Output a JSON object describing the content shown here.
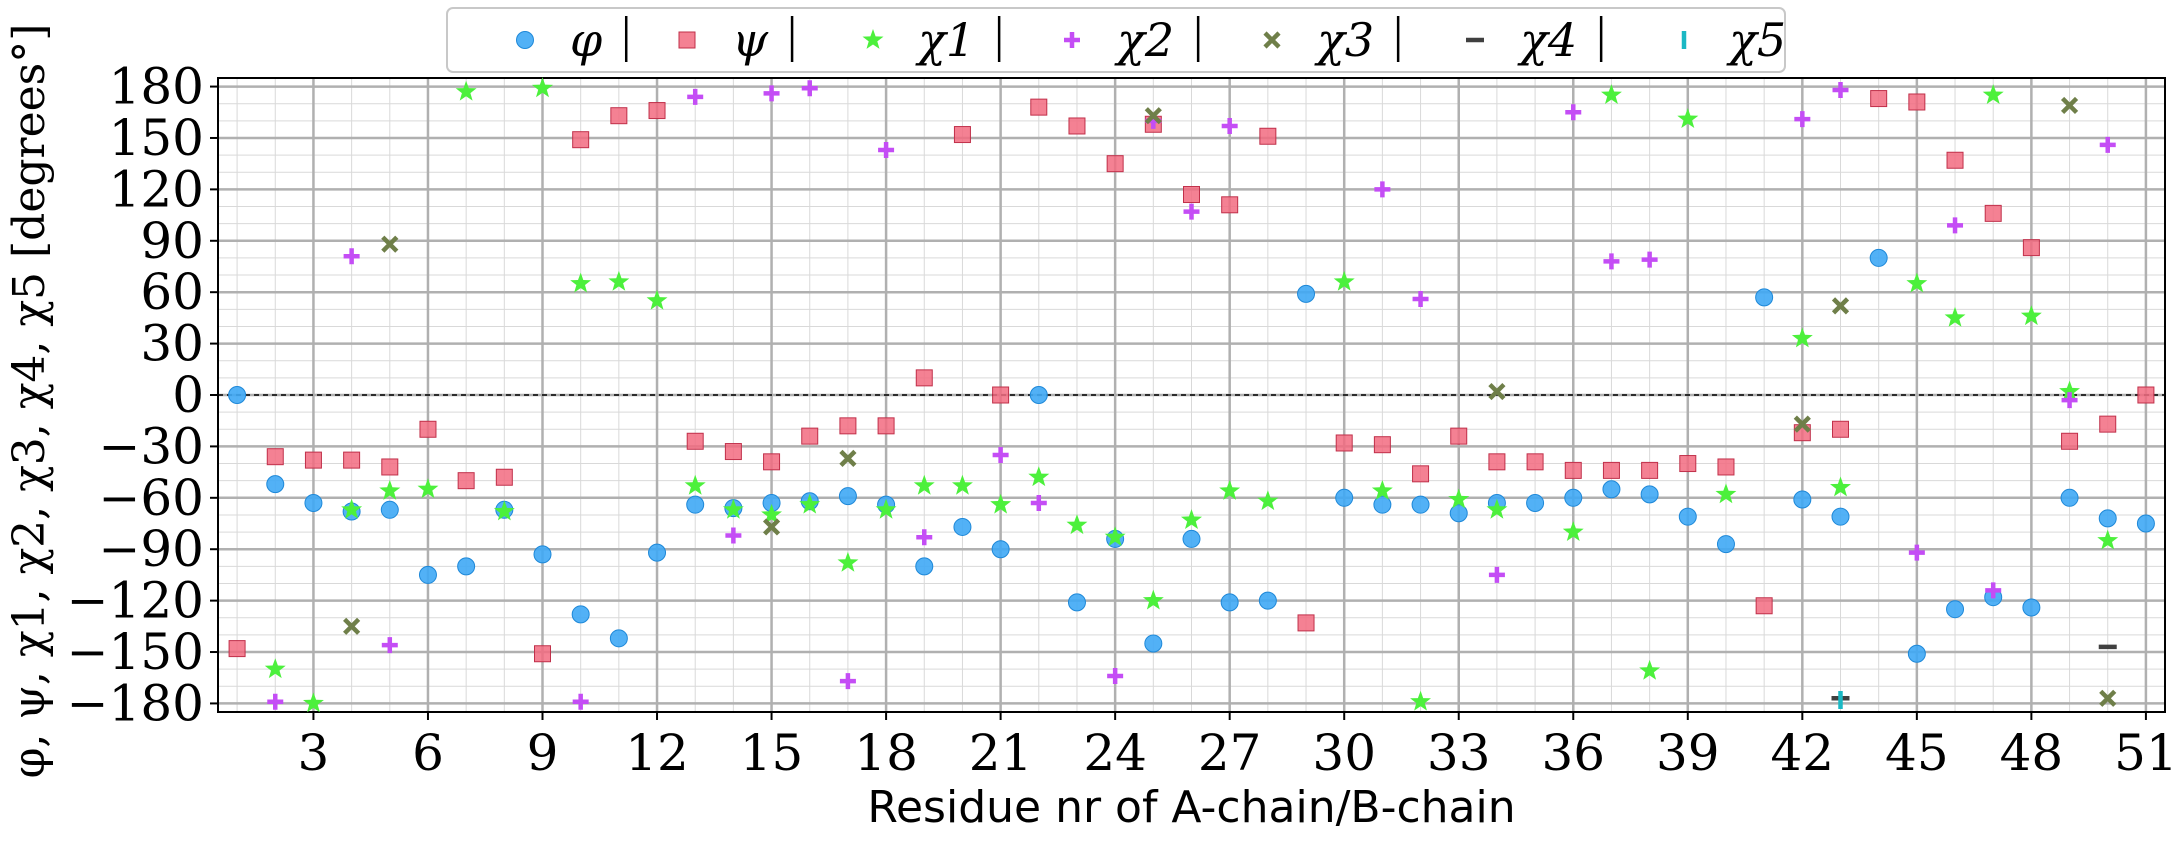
{
  "chart_data": {
    "type": "scatter",
    "xlabel": "Residue nr of A-chain/B-chain",
    "ylabel": "φ, ψ, χ1, χ2, χ3, χ4, χ5 [degrees°]",
    "xlim": [
      0.5,
      51.5
    ],
    "ylim": [
      -185,
      185
    ],
    "x_ticks": [
      3,
      6,
      9,
      12,
      15,
      18,
      21,
      24,
      27,
      30,
      33,
      36,
      39,
      42,
      45,
      48,
      51
    ],
    "y_ticks": [
      180,
      150,
      120,
      90,
      60,
      30,
      0,
      -30,
      -60,
      -90,
      -120,
      -150,
      -180
    ],
    "y_tick_labels": [
      "180",
      "150",
      "120",
      "90",
      "60",
      "30",
      "0",
      "−30",
      "−60",
      "−90",
      "−120",
      "−150",
      "−180"
    ],
    "minor_x_step": 1,
    "minor_y_step": 10,
    "grid": true,
    "zero_line": true,
    "legend_position": "top-center",
    "series": [
      {
        "name": "φ",
        "marker": "circle",
        "color": "#3fa9f5",
        "points": [
          [
            1,
            0
          ],
          [
            2,
            -52
          ],
          [
            3,
            -63
          ],
          [
            4,
            -68
          ],
          [
            5,
            -67
          ],
          [
            6,
            -105
          ],
          [
            7,
            -100
          ],
          [
            8,
            -67
          ],
          [
            9,
            -93
          ],
          [
            10,
            -128
          ],
          [
            11,
            -142
          ],
          [
            12,
            -92
          ],
          [
            13,
            -64
          ],
          [
            14,
            -66
          ],
          [
            15,
            -63
          ],
          [
            16,
            -62
          ],
          [
            17,
            -59
          ],
          [
            18,
            -64
          ],
          [
            19,
            -100
          ],
          [
            20,
            -77
          ],
          [
            21,
            -90
          ],
          [
            22,
            0
          ],
          [
            23,
            -121
          ],
          [
            24,
            -84
          ],
          [
            25,
            -145
          ],
          [
            26,
            -84
          ],
          [
            27,
            -121
          ],
          [
            28,
            -120
          ],
          [
            29,
            59
          ],
          [
            30,
            -60
          ],
          [
            31,
            -64
          ],
          [
            32,
            -64
          ],
          [
            33,
            -69
          ],
          [
            34,
            -63
          ],
          [
            35,
            -63
          ],
          [
            36,
            -60
          ],
          [
            37,
            -55
          ],
          [
            38,
            -58
          ],
          [
            39,
            -71
          ],
          [
            40,
            -87
          ],
          [
            41,
            57
          ],
          [
            42,
            -61
          ],
          [
            43,
            -71
          ],
          [
            44,
            80
          ],
          [
            45,
            -151
          ],
          [
            46,
            -125
          ],
          [
            47,
            -118
          ],
          [
            48,
            -124
          ],
          [
            49,
            -60
          ],
          [
            50,
            -72
          ],
          [
            51,
            -75
          ]
        ]
      },
      {
        "name": "ψ",
        "marker": "square",
        "color": "#f26b80",
        "points": [
          [
            1,
            -148
          ],
          [
            2,
            -36
          ],
          [
            3,
            -38
          ],
          [
            4,
            -38
          ],
          [
            5,
            -42
          ],
          [
            6,
            -20
          ],
          [
            7,
            -50
          ],
          [
            8,
            -48
          ],
          [
            9,
            -151
          ],
          [
            10,
            149
          ],
          [
            11,
            163
          ],
          [
            12,
            166
          ],
          [
            13,
            -27
          ],
          [
            14,
            -33
          ],
          [
            15,
            -39
          ],
          [
            16,
            -24
          ],
          [
            17,
            -18
          ],
          [
            18,
            -18
          ],
          [
            19,
            10
          ],
          [
            20,
            152
          ],
          [
            21,
            0
          ],
          [
            22,
            168
          ],
          [
            23,
            157
          ],
          [
            24,
            135
          ],
          [
            25,
            158
          ],
          [
            26,
            117
          ],
          [
            27,
            111
          ],
          [
            28,
            151
          ],
          [
            29,
            -133
          ],
          [
            30,
            -28
          ],
          [
            31,
            -29
          ],
          [
            32,
            -46
          ],
          [
            33,
            -24
          ],
          [
            34,
            -39
          ],
          [
            35,
            -39
          ],
          [
            36,
            -44
          ],
          [
            37,
            -44
          ],
          [
            38,
            -44
          ],
          [
            39,
            -40
          ],
          [
            40,
            -42
          ],
          [
            41,
            -123
          ],
          [
            42,
            -22
          ],
          [
            43,
            -20
          ],
          [
            44,
            173
          ],
          [
            45,
            171
          ],
          [
            46,
            137
          ],
          [
            47,
            106
          ],
          [
            48,
            86
          ],
          [
            49,
            -27
          ],
          [
            50,
            -17
          ],
          [
            51,
            0
          ]
        ]
      },
      {
        "name": "χ1",
        "marker": "star",
        "color": "#4cf03c",
        "points": [
          [
            2,
            -160
          ],
          [
            3,
            -180
          ],
          [
            4,
            -67
          ],
          [
            5,
            -56
          ],
          [
            6,
            -55
          ],
          [
            7,
            177
          ],
          [
            8,
            -68
          ],
          [
            9,
            179
          ],
          [
            10,
            65
          ],
          [
            11,
            66
          ],
          [
            12,
            55
          ],
          [
            13,
            -53
          ],
          [
            14,
            -67
          ],
          [
            15,
            -70
          ],
          [
            16,
            -64
          ],
          [
            17,
            -98
          ],
          [
            18,
            -67
          ],
          [
            19,
            -53
          ],
          [
            20,
            -53
          ],
          [
            21,
            -64
          ],
          [
            22,
            -48
          ],
          [
            23,
            -76
          ],
          [
            24,
            -83
          ],
          [
            25,
            -120
          ],
          [
            26,
            -73
          ],
          [
            27,
            -56
          ],
          [
            28,
            -62
          ],
          [
            30,
            66
          ],
          [
            31,
            -56
          ],
          [
            32,
            -179
          ],
          [
            33,
            -61
          ],
          [
            34,
            -67
          ],
          [
            36,
            -80
          ],
          [
            37,
            175
          ],
          [
            38,
            -161
          ],
          [
            39,
            161
          ],
          [
            40,
            -58
          ],
          [
            42,
            33
          ],
          [
            43,
            -54
          ],
          [
            45,
            65
          ],
          [
            46,
            45
          ],
          [
            47,
            175
          ],
          [
            48,
            46
          ],
          [
            49,
            2
          ],
          [
            50,
            -85
          ]
        ]
      },
      {
        "name": "χ2",
        "marker": "plus",
        "color": "#c44df5",
        "points": [
          [
            2,
            -179
          ],
          [
            4,
            81
          ],
          [
            5,
            -146
          ],
          [
            10,
            -179
          ],
          [
            13,
            174
          ],
          [
            14,
            -82
          ],
          [
            15,
            176
          ],
          [
            16,
            179
          ],
          [
            17,
            -167
          ],
          [
            18,
            143
          ],
          [
            19,
            -83
          ],
          [
            21,
            -35
          ],
          [
            22,
            -63
          ],
          [
            24,
            -164
          ],
          [
            25,
            160
          ],
          [
            26,
            107
          ],
          [
            27,
            157
          ],
          [
            31,
            120
          ],
          [
            32,
            56
          ],
          [
            34,
            -105
          ],
          [
            36,
            165
          ],
          [
            37,
            78
          ],
          [
            38,
            79
          ],
          [
            42,
            161
          ],
          [
            43,
            178
          ],
          [
            45,
            -92
          ],
          [
            46,
            99
          ],
          [
            47,
            -114
          ],
          [
            49,
            -3
          ],
          [
            50,
            146
          ]
        ]
      },
      {
        "name": "χ3",
        "marker": "x",
        "color": "#6f7f49",
        "points": [
          [
            4,
            -135
          ],
          [
            5,
            88
          ],
          [
            15,
            -77
          ],
          [
            17,
            -37
          ],
          [
            25,
            163
          ],
          [
            34,
            2
          ],
          [
            42,
            -17
          ],
          [
            43,
            52
          ],
          [
            49,
            169
          ],
          [
            50,
            -177
          ]
        ]
      },
      {
        "name": "χ4",
        "marker": "hline",
        "color": "#404040",
        "points": [
          [
            43,
            -177
          ],
          [
            50,
            -147
          ]
        ]
      },
      {
        "name": "χ5",
        "marker": "vline",
        "color": "#1ab8c4",
        "points": [
          [
            43,
            -178
          ]
        ]
      }
    ]
  }
}
